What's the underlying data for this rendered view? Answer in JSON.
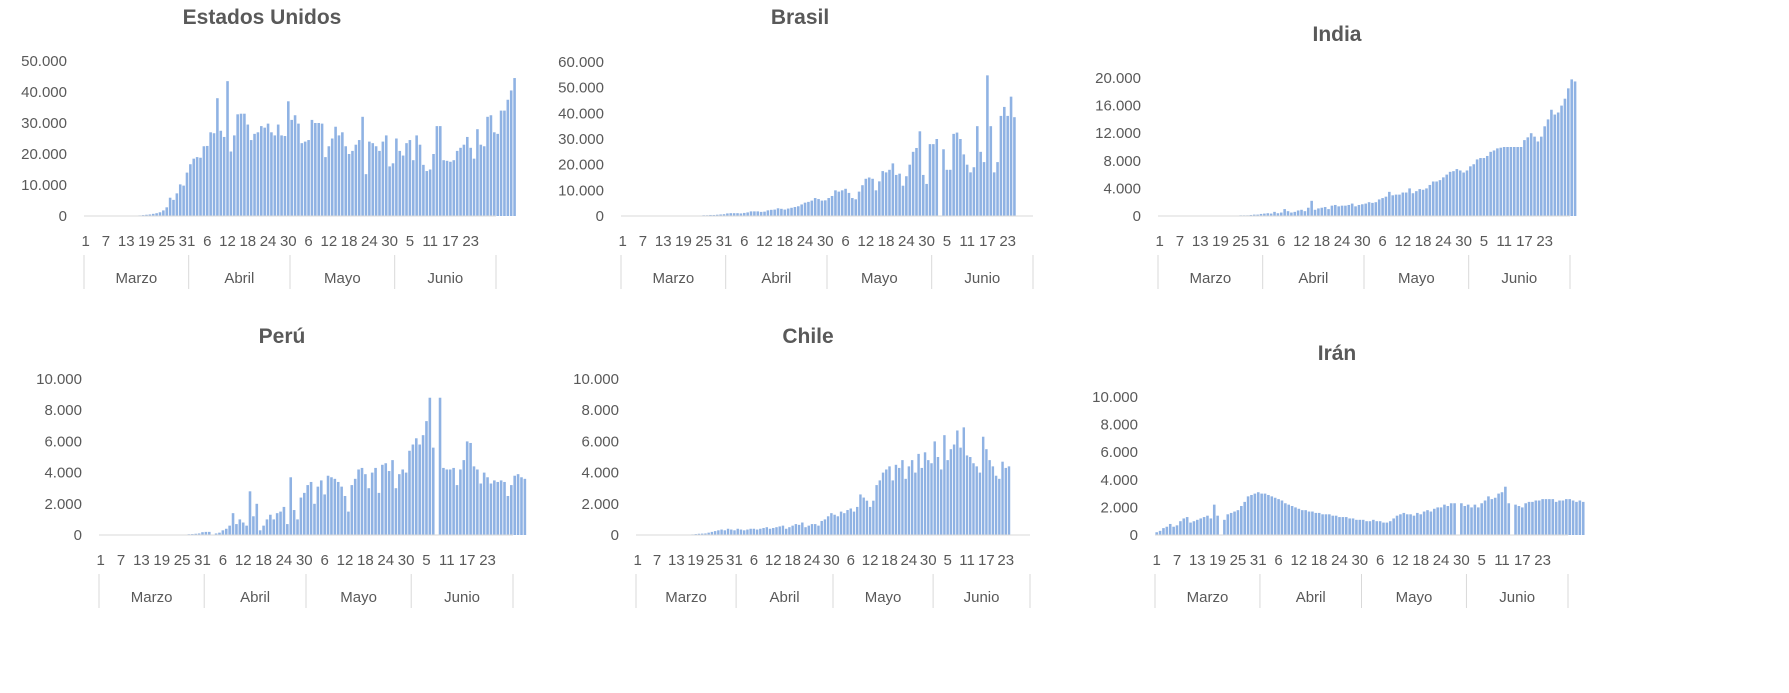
{
  "chart_data": [
    {
      "type": "bar",
      "title": "Estados Unidos",
      "ylim": [
        0,
        50000
      ],
      "yticks": [
        "0",
        "10.000",
        "20.000",
        "30.000",
        "40.000",
        "50.000"
      ],
      "xticks": [
        "1",
        "7",
        "13",
        "19",
        "25",
        "31",
        "6",
        "12",
        "18",
        "24",
        "30",
        "6",
        "12",
        "18",
        "24",
        "30",
        "5",
        "11",
        "17",
        "23"
      ],
      "months": [
        "Marzo",
        "Abril",
        "Mayo",
        "Junio"
      ],
      "values": [
        0,
        0,
        0,
        0,
        0,
        0,
        0,
        0,
        0,
        0,
        0,
        0,
        0,
        0,
        0,
        0,
        200,
        300,
        400,
        500,
        700,
        900,
        1200,
        1800,
        2800,
        5900,
        5200,
        7300,
        10200,
        9800,
        14000,
        16700,
        18500,
        19000,
        18800,
        22500,
        22600,
        27000,
        26700,
        38000,
        27500,
        25500,
        43500,
        20800,
        26000,
        32800,
        33000,
        33000,
        29500,
        24500,
        26500,
        27000,
        29000,
        28500,
        29800,
        27000,
        26000,
        29500,
        26000,
        25800,
        37000,
        31000,
        32500,
        29800,
        23500,
        24000,
        24500,
        31000,
        30000,
        30000,
        29800,
        19000,
        22500,
        25000,
        28800,
        26000,
        27000,
        22500,
        20000,
        21000,
        23000,
        24500,
        32000,
        13500,
        24000,
        23500,
        22500,
        21000,
        24000,
        26000,
        16000,
        17000,
        25000,
        21000,
        19500,
        23500,
        24500,
        18000,
        26000,
        23000,
        16500,
        14500,
        15000,
        20000,
        29000,
        29000,
        18000,
        17800,
        17500,
        18000,
        21000,
        22000,
        23000,
        25500,
        22000,
        18500,
        28000,
        23000,
        22500,
        32000,
        32500,
        27000,
        26500,
        34000,
        34000,
        37500,
        40500,
        44500
      ]
    },
    {
      "type": "bar",
      "title": "Brasil",
      "ylim": [
        0,
        60000
      ],
      "yticks": [
        "0",
        "10.000",
        "20.000",
        "30.000",
        "40.000",
        "50.000",
        "60.000"
      ],
      "xticks": [
        "1",
        "7",
        "13",
        "19",
        "25",
        "31",
        "6",
        "12",
        "18",
        "24",
        "30",
        "6",
        "12",
        "18",
        "24",
        "30",
        "5",
        "11",
        "17",
        "23"
      ],
      "months": [
        "Marzo",
        "Abril",
        "Mayo",
        "Junio"
      ],
      "values": [
        0,
        0,
        0,
        0,
        0,
        0,
        0,
        0,
        0,
        0,
        0,
        0,
        0,
        0,
        0,
        0,
        0,
        0,
        0,
        0,
        0,
        0,
        100,
        200,
        300,
        300,
        400,
        400,
        500,
        600,
        700,
        1000,
        1100,
        1100,
        1100,
        1000,
        1200,
        1400,
        1800,
        1800,
        1800,
        1600,
        1700,
        2200,
        2400,
        2500,
        3000,
        2800,
        2500,
        2900,
        3200,
        3500,
        3800,
        4500,
        5200,
        5500,
        6000,
        7000,
        6600,
        6000,
        6100,
        7000,
        7800,
        10000,
        9500,
        10000,
        10600,
        9000,
        7000,
        6500,
        9500,
        12000,
        14500,
        15000,
        14500,
        10000,
        13500,
        17500,
        17000,
        18000,
        20500,
        16000,
        16500,
        11800,
        15500,
        20000,
        25000,
        26500,
        33000,
        16000,
        12500,
        28000,
        28000,
        30000,
        0,
        26000,
        18000,
        18000,
        32000,
        32500,
        30000,
        24000,
        20000,
        17000,
        19000,
        35000,
        25000,
        21000,
        54800,
        35000,
        17000,
        21000,
        39000,
        42500,
        39000,
        46500,
        38500
      ]
    },
    {
      "type": "bar",
      "title": "India",
      "ylim": [
        0,
        20000
      ],
      "yticks": [
        "0",
        "4.000",
        "8.000",
        "12.000",
        "16.000",
        "20.000"
      ],
      "xticks": [
        "1",
        "7",
        "13",
        "19",
        "25",
        "31",
        "6",
        "12",
        "18",
        "24",
        "30",
        "6",
        "12",
        "18",
        "24",
        "30",
        "5",
        "11",
        "17",
        "23"
      ],
      "months": [
        "Marzo",
        "Abril",
        "Mayo",
        "Junio"
      ],
      "values": [
        0,
        0,
        0,
        0,
        0,
        0,
        0,
        0,
        0,
        0,
        0,
        0,
        0,
        0,
        0,
        0,
        0,
        0,
        0,
        0,
        0,
        0,
        0,
        50,
        100,
        100,
        100,
        150,
        200,
        200,
        300,
        350,
        400,
        350,
        600,
        400,
        500,
        1000,
        700,
        500,
        600,
        800,
        900,
        700,
        1200,
        2200,
        900,
        1100,
        1200,
        1300,
        1000,
        1500,
        1600,
        1400,
        1500,
        1500,
        1600,
        1800,
        1400,
        1600,
        1700,
        1800,
        2000,
        1900,
        2000,
        2400,
        2600,
        2800,
        3500,
        3000,
        3100,
        3100,
        3400,
        3400,
        4000,
        3300,
        3600,
        3900,
        3800,
        4000,
        4500,
        5000,
        5000,
        5200,
        5600,
        6000,
        6400,
        6500,
        6800,
        6600,
        6300,
        6600,
        7200,
        7500,
        8200,
        8400,
        8400,
        8700,
        9300,
        9500,
        9800,
        9900,
        10000,
        10000,
        10000,
        10000,
        10000,
        10000,
        11000,
        11400,
        12000,
        11500,
        10800,
        11500,
        13000,
        14000,
        15400,
        14700,
        15000,
        16000,
        17000,
        18500,
        19800,
        19500
      ]
    },
    {
      "type": "bar",
      "title": "Perú",
      "ylim": [
        0,
        10000
      ],
      "yticks": [
        "0",
        "2.000",
        "4.000",
        "6.000",
        "8.000",
        "10.000"
      ],
      "xticks": [
        "1",
        "7",
        "13",
        "19",
        "25",
        "31",
        "6",
        "12",
        "18",
        "24",
        "30",
        "6",
        "12",
        "18",
        "24",
        "30",
        "5",
        "11",
        "17",
        "23"
      ],
      "months": [
        "Marzo",
        "Abril",
        "Mayo",
        "Junio"
      ],
      "values": [
        0,
        0,
        0,
        0,
        0,
        0,
        0,
        0,
        0,
        0,
        0,
        0,
        0,
        0,
        0,
        0,
        0,
        0,
        0,
        0,
        0,
        0,
        0,
        0,
        0,
        0,
        50,
        60,
        80,
        100,
        180,
        200,
        200,
        0,
        100,
        150,
        300,
        400,
        600,
        1400,
        700,
        1000,
        800,
        600,
        2800,
        1200,
        2000,
        300,
        600,
        1000,
        1300,
        1000,
        1400,
        1500,
        1800,
        700,
        3700,
        1600,
        1000,
        2400,
        2700,
        3200,
        3400,
        2000,
        3100,
        3500,
        2600,
        3800,
        3700,
        3600,
        3400,
        3100,
        2500,
        1500,
        3200,
        3600,
        4200,
        4300,
        3900,
        3000,
        4000,
        4300,
        2700,
        4500,
        4600,
        4100,
        4800,
        3000,
        3900,
        4200,
        4000,
        5400,
        5800,
        6200,
        5800,
        6400,
        7300,
        8800,
        5600,
        0,
        8800,
        4300,
        4200,
        4200,
        4300,
        3200,
        4200,
        4800,
        6000,
        5900,
        4400,
        4200,
        3300,
        4000,
        3700,
        3300,
        3500,
        3400,
        3500,
        3400,
        2500,
        3200,
        3800,
        3900,
        3700,
        3600
      ]
    },
    {
      "type": "bar",
      "title": "Chile",
      "ylim": [
        0,
        10000
      ],
      "yticks": [
        "0",
        "2.000",
        "4.000",
        "6.000",
        "8.000",
        "10.000"
      ],
      "xticks": [
        "1",
        "7",
        "13",
        "19",
        "25",
        "31",
        "6",
        "12",
        "18",
        "24",
        "30",
        "6",
        "12",
        "18",
        "24",
        "30",
        "5",
        "11",
        "17",
        "23"
      ],
      "months": [
        "Marzo",
        "Abril",
        "Mayo",
        "Junio"
      ],
      "values": [
        0,
        0,
        0,
        0,
        0,
        0,
        0,
        0,
        0,
        0,
        0,
        0,
        0,
        0,
        0,
        0,
        20,
        40,
        60,
        80,
        90,
        100,
        150,
        200,
        250,
        300,
        350,
        300,
        400,
        350,
        300,
        400,
        350,
        300,
        350,
        400,
        400,
        350,
        400,
        450,
        500,
        400,
        450,
        500,
        550,
        600,
        400,
        500,
        600,
        700,
        650,
        800,
        500,
        600,
        700,
        700,
        600,
        900,
        1000,
        1200,
        1400,
        1300,
        1200,
        1500,
        1400,
        1600,
        1700,
        1500,
        1800,
        2600,
        2400,
        2200,
        1800,
        2200,
        3200,
        3500,
        4000,
        4200,
        4400,
        3500,
        4500,
        4300,
        4800,
        3600,
        4400,
        4800,
        4000,
        5200,
        4300,
        5300,
        4800,
        4600,
        6000,
        5000,
        4200,
        6400,
        4800,
        5500,
        5800,
        6700,
        5600,
        6900,
        5100,
        5000,
        4600,
        4400,
        4000,
        6300,
        5500,
        4800,
        4400,
        3800,
        3600,
        4700,
        4300,
        4400
      ]
    },
    {
      "type": "bar",
      "title": "Irán",
      "ylim": [
        0,
        10000
      ],
      "yticks": [
        "0",
        "2.000",
        "4.000",
        "6.000",
        "8.000",
        "10.000"
      ],
      "xticks": [
        "1",
        "7",
        "13",
        "19",
        "25",
        "31",
        "6",
        "12",
        "18",
        "24",
        "30",
        "6",
        "12",
        "18",
        "24",
        "30",
        "5",
        "11",
        "17",
        "23"
      ],
      "months": [
        "Marzo",
        "Abril",
        "Mayo",
        "Junio"
      ],
      "values": [
        200,
        300,
        500,
        600,
        800,
        600,
        700,
        1000,
        1200,
        1300,
        900,
        1000,
        1100,
        1200,
        1300,
        1400,
        1200,
        2200,
        1400,
        0,
        1100,
        1500,
        1600,
        1700,
        1800,
        2100,
        2400,
        2800,
        2900,
        3000,
        3100,
        3000,
        3000,
        2900,
        2800,
        2700,
        2600,
        2500,
        2300,
        2200,
        2100,
        2000,
        1900,
        1800,
        1800,
        1700,
        1700,
        1600,
        1600,
        1500,
        1500,
        1500,
        1400,
        1400,
        1300,
        1300,
        1300,
        1200,
        1200,
        1100,
        1100,
        1100,
        1000,
        1000,
        1100,
        1000,
        1000,
        900,
        900,
        1000,
        1200,
        1400,
        1500,
        1600,
        1500,
        1500,
        1400,
        1600,
        1500,
        1700,
        1800,
        1700,
        1900,
        2000,
        2000,
        2200,
        2100,
        2300,
        2300,
        0,
        2300,
        2100,
        2200,
        2000,
        2200,
        2000,
        2300,
        2500,
        2800,
        2600,
        2700,
        3000,
        3100,
        3500,
        2300,
        0,
        2200,
        2100,
        2000,
        2300,
        2400,
        2400,
        2500,
        2500,
        2600,
        2600,
        2600,
        2600,
        2400,
        2500,
        2500,
        2600,
        2600,
        2500,
        2400,
        2500,
        2400
      ]
    }
  ]
}
